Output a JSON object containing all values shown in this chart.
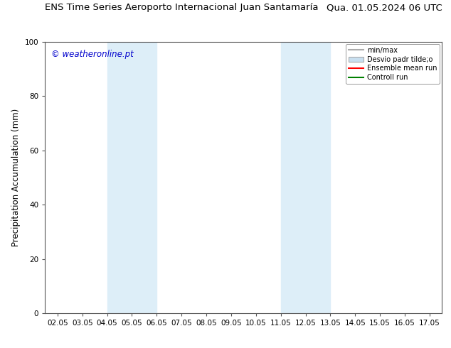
{
  "title_left": "ENS Time Series Aeroporto Internacional Juan Santamaría",
  "title_right": "Qua. 01.05.2024 06 UTC",
  "ylabel": "Precipitation Accumulation (mm)",
  "watermark": "© weatheronline.pt",
  "watermark_color": "#0000cc",
  "xlim_left": 1.5,
  "xlim_right": 17.5,
  "ylim_bottom": 0,
  "ylim_top": 100,
  "yticks": [
    0,
    20,
    40,
    60,
    80,
    100
  ],
  "xtick_labels": [
    "02.05",
    "03.05",
    "04.05",
    "05.05",
    "06.05",
    "07.05",
    "08.05",
    "09.05",
    "10.05",
    "11.05",
    "12.05",
    "13.05",
    "14.05",
    "15.05",
    "16.05",
    "17.05"
  ],
  "xtick_positions": [
    2,
    3,
    4,
    5,
    6,
    7,
    8,
    9,
    10,
    11,
    12,
    13,
    14,
    15,
    16,
    17
  ],
  "shaded_regions": [
    {
      "x_start": 4.0,
      "x_end": 6.0,
      "color": "#ddeef8",
      "alpha": 1.0
    },
    {
      "x_start": 11.0,
      "x_end": 13.0,
      "color": "#ddeef8",
      "alpha": 1.0
    }
  ],
  "legend_entries": [
    {
      "label": "min/max",
      "color": "#aaaaaa",
      "style": "line",
      "lw": 1.5
    },
    {
      "label": "Desvio padr tilde;o",
      "color": "#c8dff0",
      "style": "patch"
    },
    {
      "label": "Ensemble mean run",
      "color": "#ff0000",
      "style": "line",
      "lw": 1.5
    },
    {
      "label": "Controll run",
      "color": "#008000",
      "style": "line",
      "lw": 1.5
    }
  ],
  "bg_color": "#ffffff",
  "plot_bg_color": "#ffffff",
  "border_color": "#555555",
  "tick_label_fontsize": 7.5,
  "axis_label_fontsize": 8.5,
  "title_fontsize": 9.5
}
